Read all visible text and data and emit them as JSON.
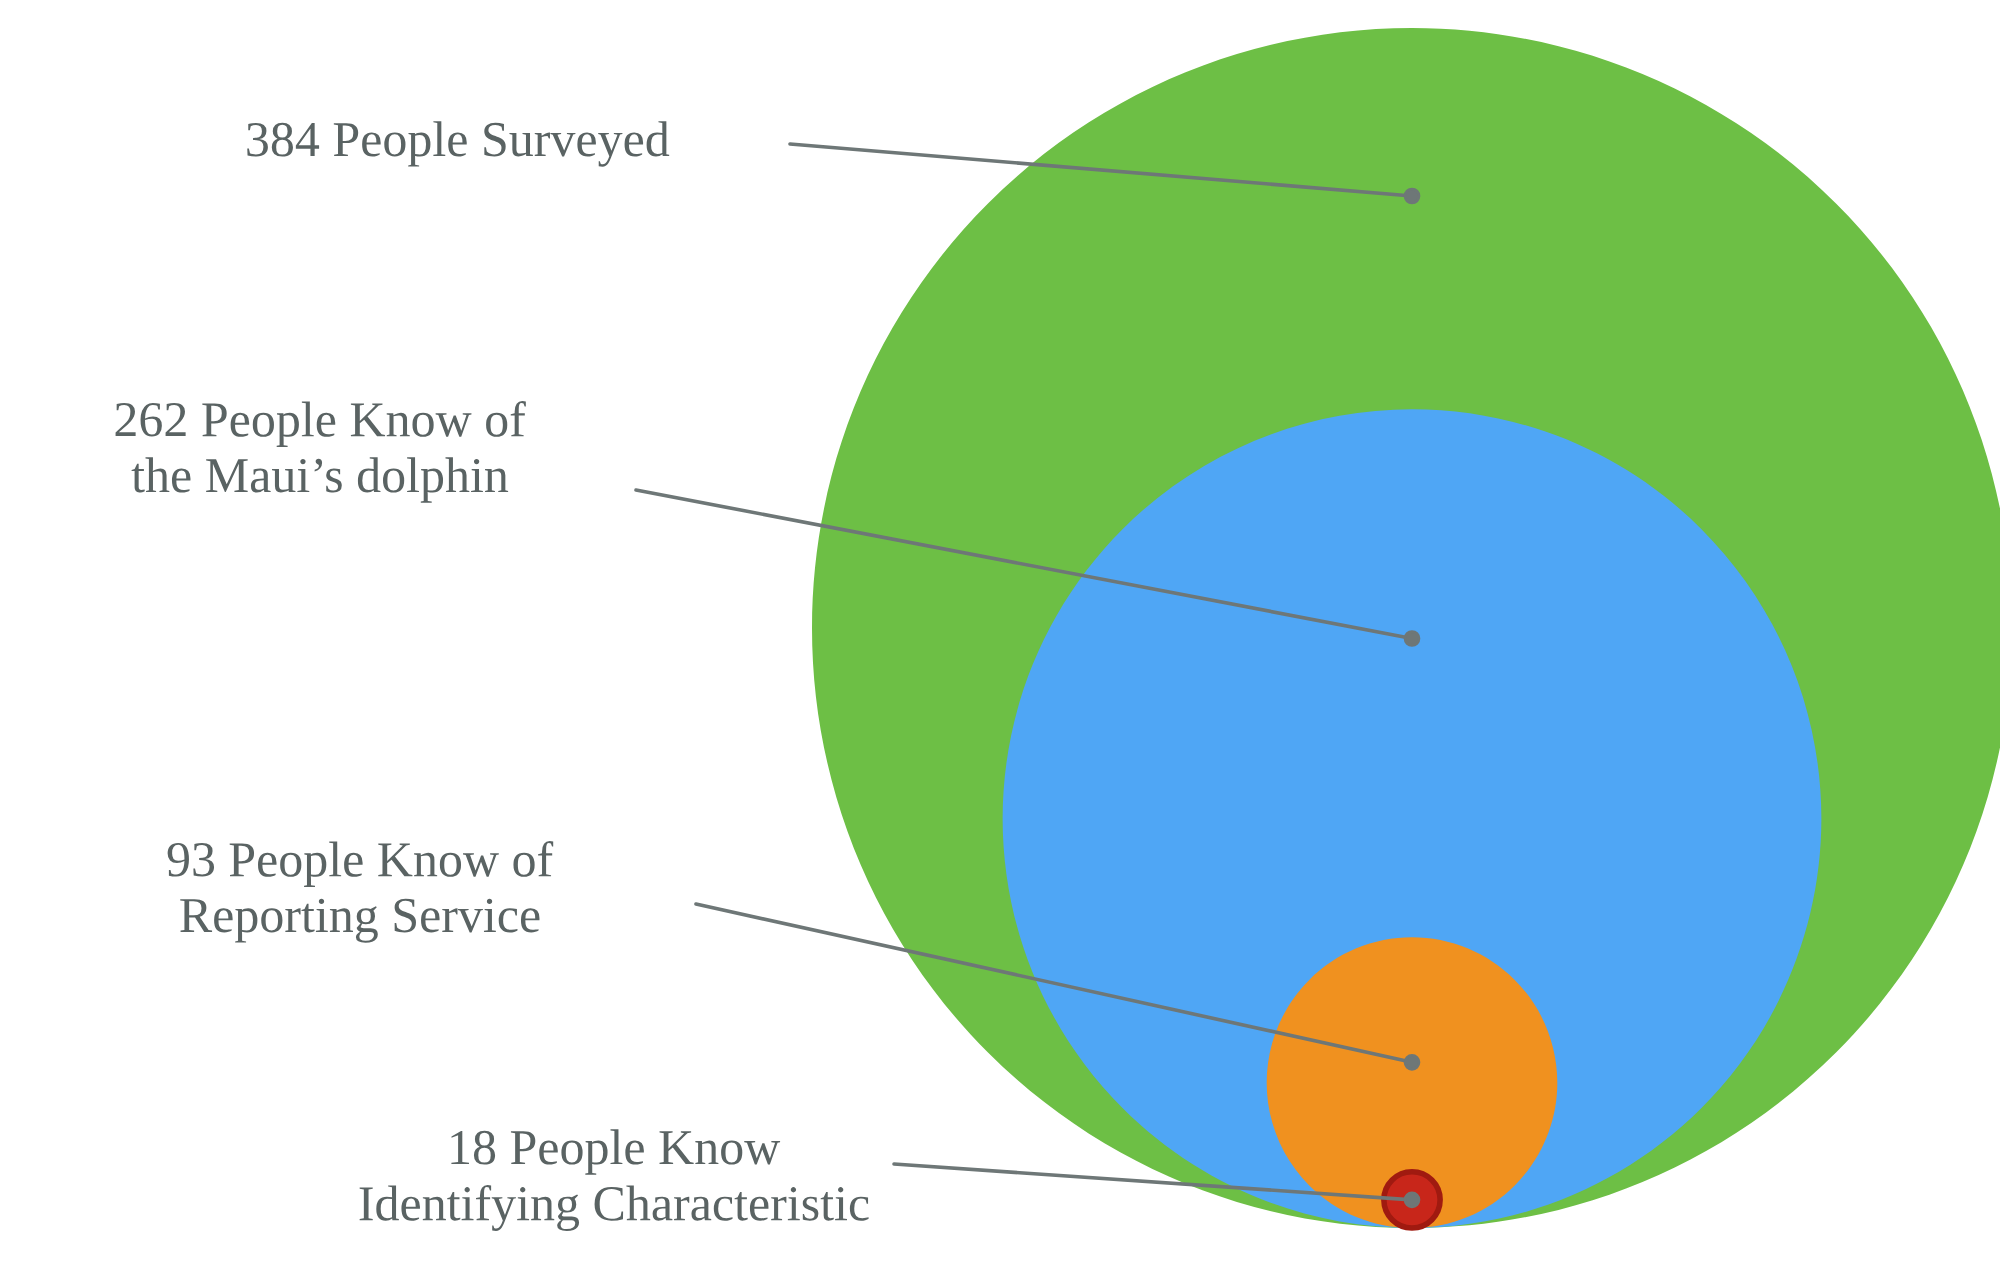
{
  "chart_data": {
    "type": "other",
    "categories": [
      "People Surveyed",
      "People Know of\nthe Maui’s dolphin",
      "People Know of\nReporting Service",
      "People Know\nIdentifying Characteristic"
    ],
    "data_labels": true,
    "values": [
      384,
      262,
      93,
      18
    ],
    "colors": [
      "#6dbf45",
      "#4fa6f5",
      "#f0911f",
      "#c8261a"
    ]
  }
}
